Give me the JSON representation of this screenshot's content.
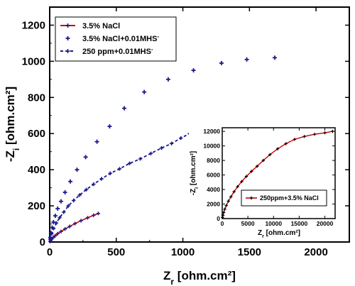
{
  "chart_data": [
    {
      "type": "scatter",
      "xlabel": "Z",
      "xlabel_sub": "r",
      "xlabel_unit": " [ohm.cm²]",
      "ylabel": "-Z",
      "ylabel_sub": "i",
      "ylabel_unit": " [ohm.cm²]",
      "xlim": [
        0,
        2250
      ],
      "ylim": [
        0,
        1300
      ],
      "x_ticks": [
        0,
        500,
        1000,
        1500,
        2000
      ],
      "y_ticks": [
        0,
        200,
        400,
        600,
        800,
        1000,
        1200
      ],
      "legend_position": "top-left",
      "series": [
        {
          "name": "3.5% NaCl",
          "color": "#cc0000",
          "marker_color": "#1a1a8c",
          "style": "line-marker",
          "x": [
            3,
            8,
            15,
            25,
            40,
            60,
            85,
            115,
            150,
            190,
            235,
            285,
            330,
            365
          ],
          "y": [
            3,
            9,
            16,
            24,
            34,
            46,
            58,
            72,
            86,
            102,
            118,
            134,
            148,
            158
          ]
        },
        {
          "name": "3.5% NaCl+0.01MHS",
          "name_sup": "-",
          "color": "#1a1a8c",
          "style": "marker",
          "x": [
            5,
            10,
            18,
            28,
            42,
            60,
            85,
            115,
            155,
            205,
            270,
            355,
            450,
            560,
            710,
            890,
            1080,
            1290,
            1480,
            1690
          ],
          "y": [
            25,
            50,
            80,
            110,
            145,
            185,
            225,
            275,
            335,
            400,
            470,
            555,
            640,
            740,
            830,
            900,
            950,
            990,
            1010,
            1020
          ]
        },
        {
          "name": "250 ppm+0.01MHS",
          "name_sup": "-",
          "color": "#1a1a8c",
          "style": "dashed-marker",
          "x": [
            4,
            15,
            30,
            50,
            75,
            105,
            140,
            180,
            225,
            275,
            330,
            390,
            455,
            525,
            600,
            680,
            760,
            840,
            915,
            985,
            1050,
            1110
          ],
          "y": [
            15,
            45,
            75,
            105,
            135,
            165,
            200,
            230,
            260,
            290,
            320,
            350,
            380,
            405,
            435,
            460,
            490,
            520,
            545,
            575,
            600,
            620
          ]
        }
      ]
    },
    {
      "type": "line",
      "inset": true,
      "xlabel": "Z",
      "xlabel_sub": "r",
      "xlabel_unit": " [ohm.cm²]",
      "ylabel": "-Z",
      "ylabel_sub": "i",
      "ylabel_unit": " [ohm.cm²]",
      "xlim": [
        0,
        22000
      ],
      "ylim": [
        0,
        12500
      ],
      "x_ticks": [
        0,
        5000,
        10000,
        15000,
        20000
      ],
      "y_ticks": [
        0,
        2000,
        4000,
        6000,
        8000,
        10000,
        12000
      ],
      "legend_position": "bottom-right",
      "series": [
        {
          "name": "250ppm+3.5% NaCl",
          "color": "#cc0000",
          "marker_color": "#000000",
          "style": "line-marker",
          "x": [
            50,
            150,
            300,
            500,
            800,
            1200,
            1700,
            2300,
            3000,
            3800,
            4700,
            5700,
            6800,
            8000,
            9300,
            10800,
            12400,
            14100,
            16000,
            18000,
            20000,
            21500
          ],
          "y": [
            150,
            450,
            850,
            1300,
            1800,
            2400,
            3000,
            3700,
            4400,
            5100,
            5800,
            6500,
            7200,
            8000,
            8800,
            9600,
            10300,
            10900,
            11300,
            11600,
            11800,
            12000
          ]
        }
      ]
    }
  ]
}
